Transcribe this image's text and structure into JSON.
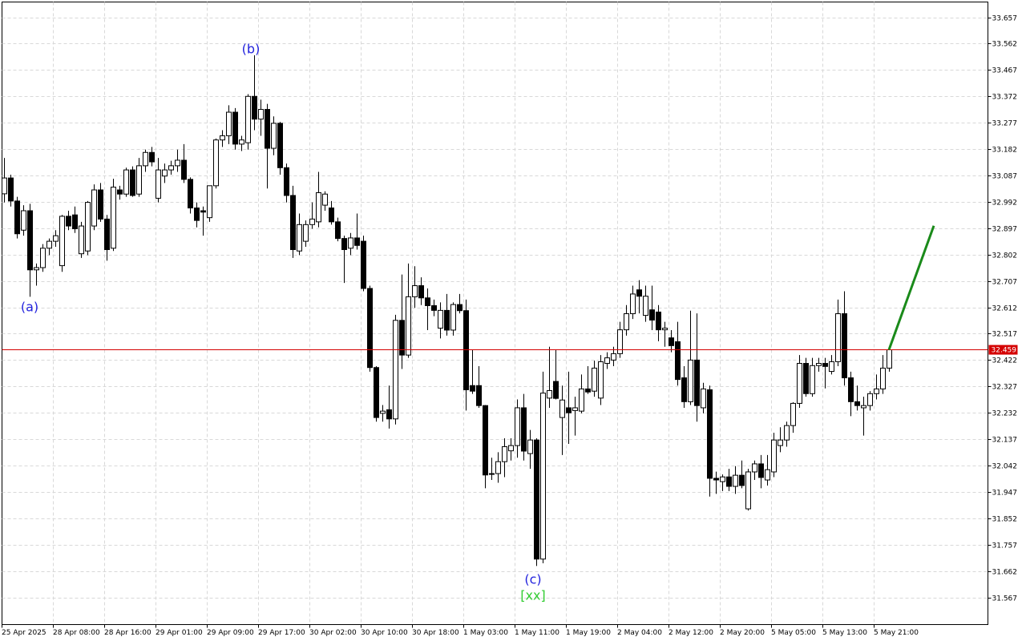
{
  "chart_data": {
    "type": "candlestick",
    "categories": [
      "25 Apr 2025",
      null,
      null,
      null,
      null,
      null,
      null,
      null,
      "28 Apr 08:00",
      null,
      null,
      null,
      null,
      null,
      null,
      null,
      "28 Apr 16:00",
      null,
      null,
      null,
      null,
      null,
      null,
      null,
      "29 Apr 01:00",
      null,
      null,
      null,
      null,
      null,
      null,
      null,
      "29 Apr 09:00",
      null,
      null,
      null,
      null,
      null,
      null,
      null,
      "29 Apr 17:00",
      null,
      null,
      null,
      null,
      null,
      null,
      null,
      "30 Apr 02:00",
      null,
      null,
      null,
      null,
      null,
      null,
      null,
      "30 Apr 10:00",
      null,
      null,
      null,
      null,
      null,
      null,
      null,
      "30 Apr 18:00",
      null,
      null,
      null,
      null,
      null,
      null,
      null,
      "1 May 03:00",
      null,
      null,
      null,
      null,
      null,
      null,
      null,
      "1 May 11:00",
      null,
      null,
      null,
      null,
      null,
      null,
      null,
      "1 May 19:00",
      null,
      null,
      null,
      null,
      null,
      null,
      null,
      "2 May 04:00",
      null,
      null,
      null,
      null,
      null,
      null,
      null,
      "2 May 12:00",
      null,
      null,
      null,
      null,
      null,
      null,
      null,
      "2 May 20:00",
      null,
      null,
      null,
      null,
      null,
      null,
      null,
      "5 May 05:00",
      null,
      null,
      null,
      null,
      null,
      null,
      null,
      "5 May 13:00",
      null,
      null,
      null,
      null,
      null,
      null,
      null,
      "5 May 21:00",
      null,
      null
    ],
    "open": [
      33.021,
      33.078,
      32.995,
      32.89,
      32.96,
      32.747,
      32.755,
      32.825,
      32.85,
      32.762,
      32.94,
      32.945,
      32.805,
      32.815,
      32.905,
      33.035,
      32.93,
      32.825,
      33.035,
      33.02,
      33.107,
      33.02,
      33.122,
      33.17,
      33.005,
      33.085,
      33.107,
      33.122,
      33.142,
      33.073,
      32.97,
      32.96,
      32.935,
      33.05,
      33.215,
      33.23,
      33.315,
      33.2,
      33.205,
      33.372,
      33.29,
      33.325,
      33.185,
      33.275,
      33.115,
      33.015,
      32.815,
      32.85,
      32.91,
      32.92,
      32.98,
      32.97,
      32.92,
      32.86,
      32.825,
      32.862,
      32.85,
      32.68,
      32.395,
      32.23,
      32.243,
      32.21,
      32.565,
      32.44,
      32.65,
      32.69,
      32.646,
      32.618,
      32.537,
      32.601,
      32.53,
      32.622,
      32.6,
      32.33,
      32.33,
      32.258,
      32.013,
      32.013,
      32.056,
      32.095,
      32.114,
      32.25,
      32.085,
      32.134,
      31.705,
      32.285,
      32.345,
      32.215,
      32.25,
      32.24,
      32.238,
      32.318,
      32.31,
      32.285,
      32.41,
      32.422,
      32.445,
      32.531,
      32.589,
      32.675,
      32.583,
      32.603,
      32.595,
      32.531,
      32.502,
      32.488,
      32.358,
      32.272,
      32.422,
      32.25,
      32.315,
      31.996,
      31.984,
      32.001,
      31.967,
      32.007,
      31.886,
      32.019,
      32.048,
      31.99,
      32.019,
      32.114,
      32.134,
      32.186,
      32.266,
      32.41,
      32.301,
      32.402,
      32.41,
      32.381,
      32.416,
      32.589,
      32.358,
      32.272,
      32.25,
      32.258,
      32.301,
      32.318,
      32.393
    ],
    "high": [
      33.15,
      33.09,
      33.01,
      32.98,
      32.985,
      32.77,
      32.84,
      32.86,
      32.89,
      32.945,
      32.96,
      32.975,
      32.92,
      32.995,
      33.055,
      33.06,
      32.945,
      33.075,
      33.05,
      33.115,
      33.12,
      33.15,
      33.18,
      33.19,
      33.15,
      33.13,
      33.14,
      33.18,
      33.2,
      33.08,
      32.99,
      32.975,
      33.05,
      33.22,
      33.25,
      33.34,
      33.33,
      33.23,
      33.38,
      33.52,
      33.36,
      33.345,
      33.3,
      33.28,
      33.13,
      33.05,
      32.95,
      32.925,
      32.99,
      33.1,
      33.03,
      32.995,
      32.935,
      32.87,
      32.88,
      32.95,
      32.87,
      32.69,
      32.4,
      32.26,
      32.33,
      32.585,
      32.73,
      32.77,
      32.76,
      32.72,
      32.68,
      32.64,
      32.63,
      32.66,
      32.63,
      32.66,
      32.64,
      32.46,
      32.4,
      32.26,
      32.07,
      32.09,
      32.14,
      32.14,
      32.28,
      32.3,
      32.17,
      32.14,
      32.38,
      32.47,
      32.46,
      32.33,
      32.38,
      32.29,
      32.37,
      32.4,
      32.42,
      32.44,
      32.45,
      32.47,
      32.56,
      32.62,
      32.69,
      32.71,
      32.69,
      32.69,
      32.62,
      32.56,
      32.53,
      32.56,
      32.4,
      32.6,
      32.59,
      32.34,
      32.33,
      32.02,
      32.01,
      32.03,
      32.04,
      32.06,
      32.03,
      32.06,
      32.08,
      32.08,
      32.16,
      32.18,
      32.2,
      32.27,
      32.44,
      32.43,
      32.43,
      32.43,
      32.43,
      32.44,
      32.64,
      32.67,
      32.38,
      32.33,
      32.29,
      32.31,
      32.37,
      32.44,
      32.47
    ],
    "low": [
      32.99,
      32.975,
      32.86,
      32.87,
      32.65,
      32.69,
      32.74,
      32.8,
      32.83,
      32.74,
      32.89,
      32.88,
      32.79,
      32.8,
      32.89,
      32.92,
      32.78,
      32.815,
      33.0,
      33.01,
      33.01,
      33.01,
      33.1,
      33.12,
      32.99,
      33.06,
      33.09,
      33.1,
      33.06,
      32.95,
      32.9,
      32.87,
      32.92,
      33.04,
      33.19,
      33.2,
      33.18,
      33.175,
      33.18,
      33.25,
      33.23,
      33.04,
      33.16,
      33.09,
      32.99,
      32.79,
      32.8,
      32.83,
      32.895,
      32.9,
      32.96,
      32.91,
      32.85,
      32.7,
      32.8,
      32.82,
      32.67,
      32.38,
      32.2,
      32.2,
      32.175,
      32.19,
      32.39,
      32.43,
      32.61,
      32.62,
      32.53,
      32.58,
      32.5,
      32.51,
      32.51,
      32.59,
      32.24,
      32.3,
      32.25,
      31.96,
      31.99,
      31.98,
      32.0,
      32.06,
      32.07,
      32.06,
      32.03,
      31.68,
      31.69,
      32.25,
      32.28,
      32.08,
      32.12,
      32.15,
      32.23,
      32.3,
      32.29,
      32.26,
      32.39,
      32.4,
      32.43,
      32.51,
      32.57,
      32.59,
      32.56,
      32.53,
      32.49,
      32.47,
      32.45,
      32.33,
      32.25,
      32.26,
      32.2,
      32.23,
      31.93,
      31.94,
      31.95,
      31.95,
      31.94,
      31.96,
      31.88,
      31.99,
      31.96,
      31.97,
      32.0,
      32.09,
      32.11,
      32.16,
      32.25,
      32.29,
      32.29,
      32.38,
      32.32,
      32.37,
      32.4,
      32.33,
      32.22,
      32.24,
      32.15,
      32.24,
      32.28,
      32.3,
      32.38
    ],
    "close": [
      33.078,
      32.995,
      32.877,
      32.96,
      32.747,
      32.755,
      32.825,
      32.85,
      32.87,
      32.94,
      32.905,
      32.895,
      32.905,
      32.99,
      33.035,
      32.93,
      32.82,
      33.045,
      33.02,
      33.107,
      33.015,
      33.122,
      33.17,
      33.136,
      33.107,
      33.107,
      33.122,
      33.142,
      33.073,
      32.97,
      32.925,
      32.955,
      33.05,
      33.215,
      33.23,
      33.315,
      33.2,
      33.215,
      33.372,
      33.29,
      33.325,
      33.185,
      33.275,
      33.115,
      33.015,
      32.82,
      32.91,
      32.91,
      32.93,
      33.025,
      33.02,
      32.92,
      32.86,
      32.82,
      32.862,
      32.835,
      32.68,
      32.395,
      32.215,
      32.238,
      32.21,
      32.565,
      32.44,
      32.65,
      32.69,
      32.646,
      32.618,
      32.601,
      32.601,
      32.53,
      32.622,
      32.6,
      32.315,
      32.31,
      32.258,
      32.008,
      32.013,
      32.056,
      32.11,
      32.114,
      32.25,
      32.094,
      32.134,
      31.705,
      32.303,
      32.312,
      32.284,
      32.278,
      32.232,
      32.25,
      32.318,
      32.307,
      32.393,
      32.416,
      32.43,
      32.445,
      32.531,
      32.589,
      32.66,
      32.652,
      32.652,
      32.566,
      32.531,
      32.537,
      32.474,
      32.352,
      32.272,
      32.422,
      32.258,
      32.318,
      31.996,
      31.99,
      32.001,
      31.967,
      32.007,
      31.97,
      32.019,
      32.048,
      31.999,
      32.027,
      32.134,
      32.134,
      32.186,
      32.266,
      32.41,
      32.301,
      32.402,
      32.41,
      32.399,
      32.416,
      32.589,
      32.358,
      32.272,
      32.258,
      32.258,
      32.301,
      32.318,
      32.393,
      32.459
    ],
    "up_color": "#ffffff",
    "down_color": "#000000",
    "ylim": [
      31.469,
      33.712
    ],
    "yticks": [
      33.657,
      33.562,
      33.467,
      33.372,
      33.277,
      33.182,
      33.087,
      32.992,
      32.897,
      32.802,
      32.707,
      32.612,
      32.517,
      32.422,
      32.327,
      32.232,
      32.137,
      32.042,
      31.947,
      31.852,
      31.757,
      31.662,
      31.567
    ],
    "grid": true,
    "last_price": 32.459,
    "last_price_color": "#d40000",
    "projection": {
      "x": [
        138,
        145
      ],
      "values": [
        32.459,
        32.906
      ],
      "color": "#1a8a1a"
    },
    "annotations": [
      {
        "text": "(a)",
        "x": 4,
        "y": 32.615,
        "color": "#2222dd"
      },
      {
        "text": "(b)",
        "x": 38.5,
        "y": 33.545,
        "color": "#2222dd"
      },
      {
        "text": "(c)",
        "x": 82.5,
        "y": 31.633,
        "color": "#2222dd"
      },
      {
        "text": "[xx]",
        "x": 82.5,
        "y": 31.576,
        "color": "#33cc33"
      }
    ]
  }
}
